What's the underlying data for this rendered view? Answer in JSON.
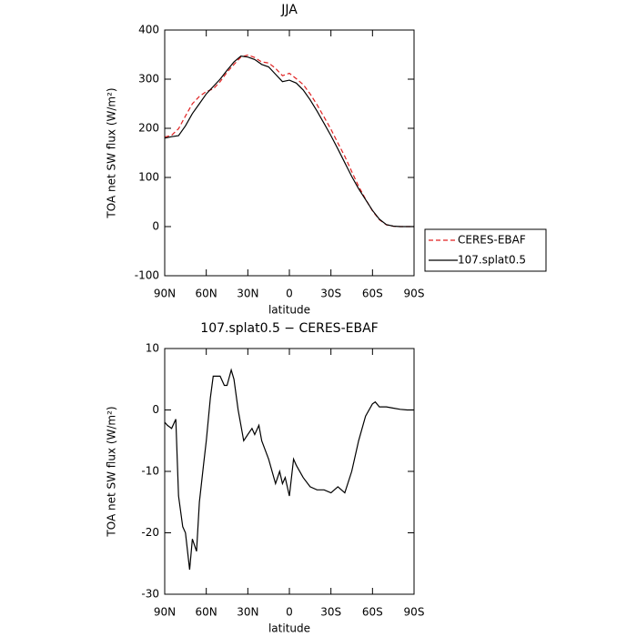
{
  "chart_data": [
    {
      "type": "line",
      "title": "JJA",
      "xlabel": "latitude",
      "ylabel": "TOA net SW flux (W/m²)",
      "x": [
        90,
        85,
        80,
        75,
        70,
        65,
        60,
        55,
        50,
        45,
        40,
        35,
        30,
        25,
        20,
        15,
        10,
        5,
        0,
        -5,
        -10,
        -15,
        -20,
        -25,
        -30,
        -35,
        -40,
        -45,
        -50,
        -55,
        -60,
        -65,
        -70,
        -75,
        -80,
        -85,
        -90
      ],
      "series": [
        {
          "name": "CERES-EBAF",
          "color": "#e02020",
          "dash": true,
          "values": [
            182,
            186,
            199,
            225,
            250,
            265,
            275,
            280,
            295,
            314,
            330,
            345,
            349,
            344,
            335,
            333,
            322,
            307,
            312,
            301,
            289,
            270,
            248,
            223,
            198,
            170,
            143,
            112,
            82,
            56,
            32,
            14,
            3.5,
            0.7,
            0,
            0,
            0
          ]
        },
        {
          "name": "107.splat0.5",
          "color": "#000000",
          "dash": false,
          "values": [
            180,
            183,
            185,
            205,
            230,
            250,
            270,
            285,
            300,
            318,
            335,
            347,
            345,
            340,
            330,
            325,
            310,
            295,
            298,
            292,
            278,
            258,
            235,
            210,
            185,
            158,
            130,
            102,
            77,
            55,
            33,
            15,
            4,
            1,
            0,
            0,
            0
          ]
        }
      ],
      "xlim": [
        90,
        -90
      ],
      "xticks": [
        {
          "value": 90,
          "label": "90N"
        },
        {
          "value": 60,
          "label": "60N"
        },
        {
          "value": 30,
          "label": "30N"
        },
        0,
        {
          "value": -30,
          "label": "30S"
        },
        {
          "value": -60,
          "label": "60S"
        },
        {
          "value": -90,
          "label": "90S"
        }
      ],
      "ylim": [
        -100,
        400
      ],
      "yticks": [
        -100,
        0,
        100,
        200,
        300,
        400
      ],
      "legend": "right"
    },
    {
      "type": "line",
      "title": "107.splat0.5 − CERES-EBAF",
      "xlabel": "latitude",
      "ylabel": "TOA net SW flux (W/m²)",
      "x": [
        90,
        88,
        85,
        82,
        80,
        77,
        75,
        72,
        70,
        67,
        65,
        62,
        60,
        57,
        55,
        50,
        47,
        45,
        42,
        40,
        37,
        33,
        30,
        27,
        25,
        22,
        20,
        15,
        10,
        7,
        5,
        3,
        0,
        -3,
        -5,
        -10,
        -15,
        -20,
        -25,
        -30,
        -35,
        -40,
        -45,
        -50,
        -55,
        -60,
        -62,
        -65,
        -70,
        -75,
        -80,
        -85,
        -90
      ],
      "series": [
        {
          "name": "107.splat0.5",
          "color": "#000000",
          "dash": false,
          "values": [
            -2,
            -2.5,
            -3,
            -1.5,
            -14,
            -19,
            -20,
            -26,
            -21,
            -23,
            -15,
            -9,
            -5,
            2,
            5.5,
            5.5,
            4,
            4,
            6.5,
            5,
            0,
            -5,
            -4,
            -3,
            -4,
            -2.5,
            -5,
            -8,
            -12,
            -10,
            -12,
            -11,
            -14,
            -8,
            -9,
            -11,
            -12.5,
            -13,
            -13,
            -13.5,
            -12.5,
            -13.5,
            -10,
            -5,
            -1,
            1,
            1.3,
            0.5,
            0.5,
            0.3,
            0.1,
            0,
            0
          ]
        }
      ],
      "xlim": [
        90,
        -90
      ],
      "xticks": [
        {
          "value": 90,
          "label": "90N"
        },
        {
          "value": 60,
          "label": "60N"
        },
        {
          "value": 30,
          "label": "30N"
        },
        0,
        {
          "value": -30,
          "label": "30S"
        },
        {
          "value": -60,
          "label": "60S"
        },
        {
          "value": -90,
          "label": "90S"
        }
      ],
      "ylim": [
        -30,
        10
      ],
      "yticks": [
        -30,
        -20,
        -10,
        0,
        10
      ]
    }
  ]
}
